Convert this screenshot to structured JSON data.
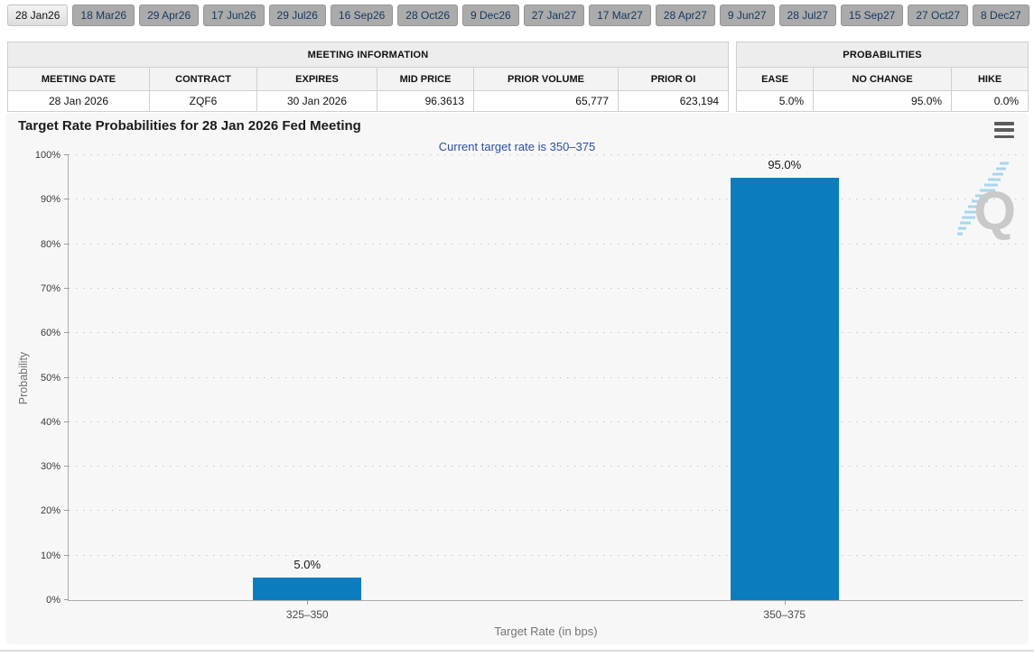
{
  "tabs": [
    {
      "label": "28 Jan26",
      "selected": true
    },
    {
      "label": "18 Mar26",
      "selected": false
    },
    {
      "label": "29 Apr26",
      "selected": false
    },
    {
      "label": "17 Jun26",
      "selected": false
    },
    {
      "label": "29 Jul26",
      "selected": false
    },
    {
      "label": "16 Sep26",
      "selected": false
    },
    {
      "label": "28 Oct26",
      "selected": false
    },
    {
      "label": "9 Dec26",
      "selected": false
    },
    {
      "label": "27 Jan27",
      "selected": false
    },
    {
      "label": "17 Mar27",
      "selected": false
    },
    {
      "label": "28 Apr27",
      "selected": false
    },
    {
      "label": "9 Jun27",
      "selected": false
    },
    {
      "label": "28 Jul27",
      "selected": false
    },
    {
      "label": "15 Sep27",
      "selected": false
    },
    {
      "label": "27 Oct27",
      "selected": false
    },
    {
      "label": "8 Dec27",
      "selected": false
    }
  ],
  "meeting_information": {
    "title": "MEETING INFORMATION",
    "columns": [
      "MEETING DATE",
      "CONTRACT",
      "EXPIRES",
      "MID PRICE",
      "PRIOR VOLUME",
      "PRIOR OI"
    ],
    "row": [
      "28 Jan 2026",
      "ZQF6",
      "30 Jan 2026",
      "96.3613",
      "65,777",
      "623,194"
    ]
  },
  "probabilities": {
    "title": "PROBABILITIES",
    "columns": [
      "EASE",
      "NO CHANGE",
      "HIKE"
    ],
    "row": [
      "5.0%",
      "95.0%",
      "0.0%"
    ]
  },
  "chart": {
    "title": "Target Rate Probabilities for 28 Jan 2026 Fed Meeting",
    "subtitle": "Current target rate is 350–375",
    "menu_icon": "hamburger-icon",
    "watermark_letter": "Q"
  },
  "chart_data": {
    "type": "bar",
    "title": "Target Rate Probabilities for 28 Jan 2026 Fed Meeting",
    "subtitle": "Current target rate is 350–375",
    "categories": [
      "325–350",
      "350–375"
    ],
    "values": [
      5.0,
      95.0
    ],
    "value_labels": [
      "5.0%",
      "95.0%"
    ],
    "xlabel": "Target Rate (in bps)",
    "ylabel": "Probability",
    "ylim": [
      0,
      100
    ],
    "ytick_step": 10,
    "ytick_labels": [
      "0%",
      "10%",
      "20%",
      "30%",
      "40%",
      "50%",
      "60%",
      "70%",
      "80%",
      "90%",
      "100%"
    ],
    "grid": "dotted horizontal",
    "legend": "none",
    "bar_color": "#0b7dbe"
  },
  "colors": {
    "bar_blue": "#0b7dbe",
    "subtitle_blue": "#2a4f9f",
    "tab_text_navy": "#17365d",
    "tab_bg_gray": "#ababab",
    "panel_bg": "#f7f7f7"
  }
}
